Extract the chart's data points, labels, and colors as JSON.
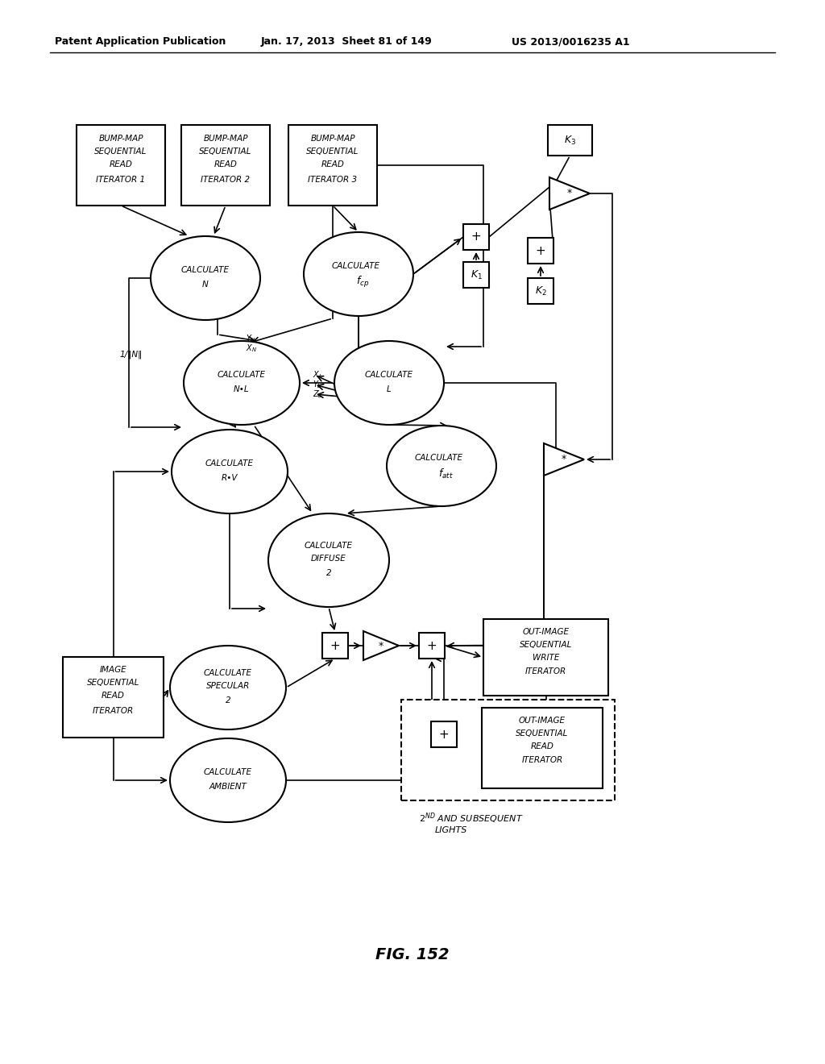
{
  "title": "FIG. 152",
  "header_left": "Patent Application Publication",
  "header_center": "Jan. 17, 2013  Sheet 81 of 149",
  "header_right": "US 2013/0016235 A1",
  "background": "#ffffff"
}
